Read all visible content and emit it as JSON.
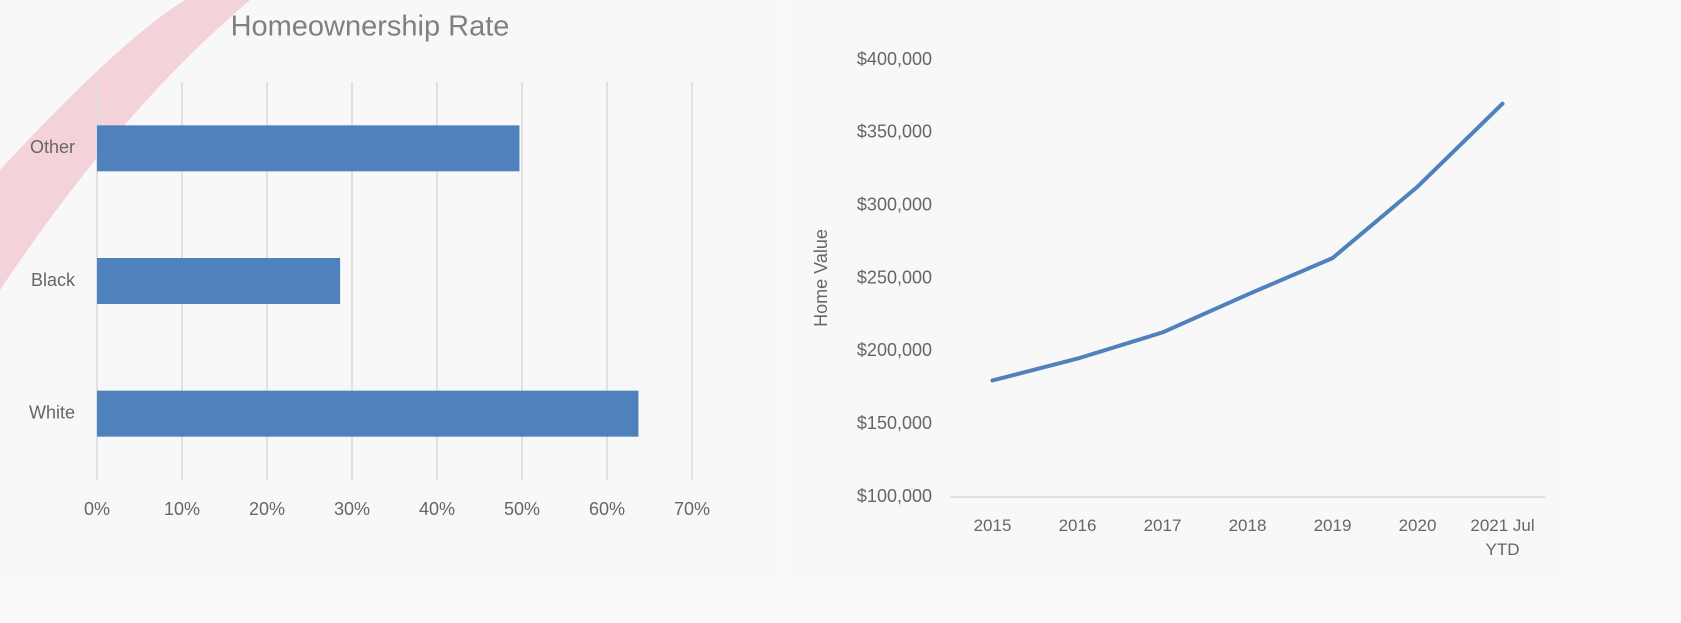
{
  "chart_data": [
    {
      "type": "bar",
      "orientation": "horizontal",
      "title": "Homeownership Rate",
      "categories": [
        "Other",
        "Black",
        "White"
      ],
      "values": [
        49.7,
        28.6,
        63.7
      ],
      "color": "#4f81bd",
      "xlim": [
        0,
        70
      ],
      "xticks": [
        {
          "value": 0,
          "label": "0%"
        },
        {
          "value": 10,
          "label": "10%"
        },
        {
          "value": 20,
          "label": "20%"
        },
        {
          "value": 30,
          "label": "30%"
        },
        {
          "value": 40,
          "label": "40%"
        },
        {
          "value": 50,
          "label": "50%"
        },
        {
          "value": 60,
          "label": "60%"
        },
        {
          "value": 70,
          "label": "70%"
        }
      ],
      "grid": true
    },
    {
      "type": "line",
      "y_label": "Home Value",
      "categories": [
        "2015",
        "2016",
        "2017",
        "2018",
        "2019",
        "2020",
        "2021 Jul YTD"
      ],
      "values": [
        180000,
        195000,
        213000,
        239000,
        264000,
        313000,
        370000
      ],
      "color": "#4f81bd",
      "ylim": [
        100000,
        400000
      ],
      "yticks": [
        {
          "value": 100000,
          "label": "$100,000"
        },
        {
          "value": 150000,
          "label": "$150,000"
        },
        {
          "value": 200000,
          "label": "$200,000"
        },
        {
          "value": 250000,
          "label": "$250,000"
        },
        {
          "value": 300000,
          "label": "$300,000"
        },
        {
          "value": 350000,
          "label": "$350,000"
        },
        {
          "value": 400000,
          "label": "$400,000"
        }
      ],
      "grid": false
    }
  ]
}
